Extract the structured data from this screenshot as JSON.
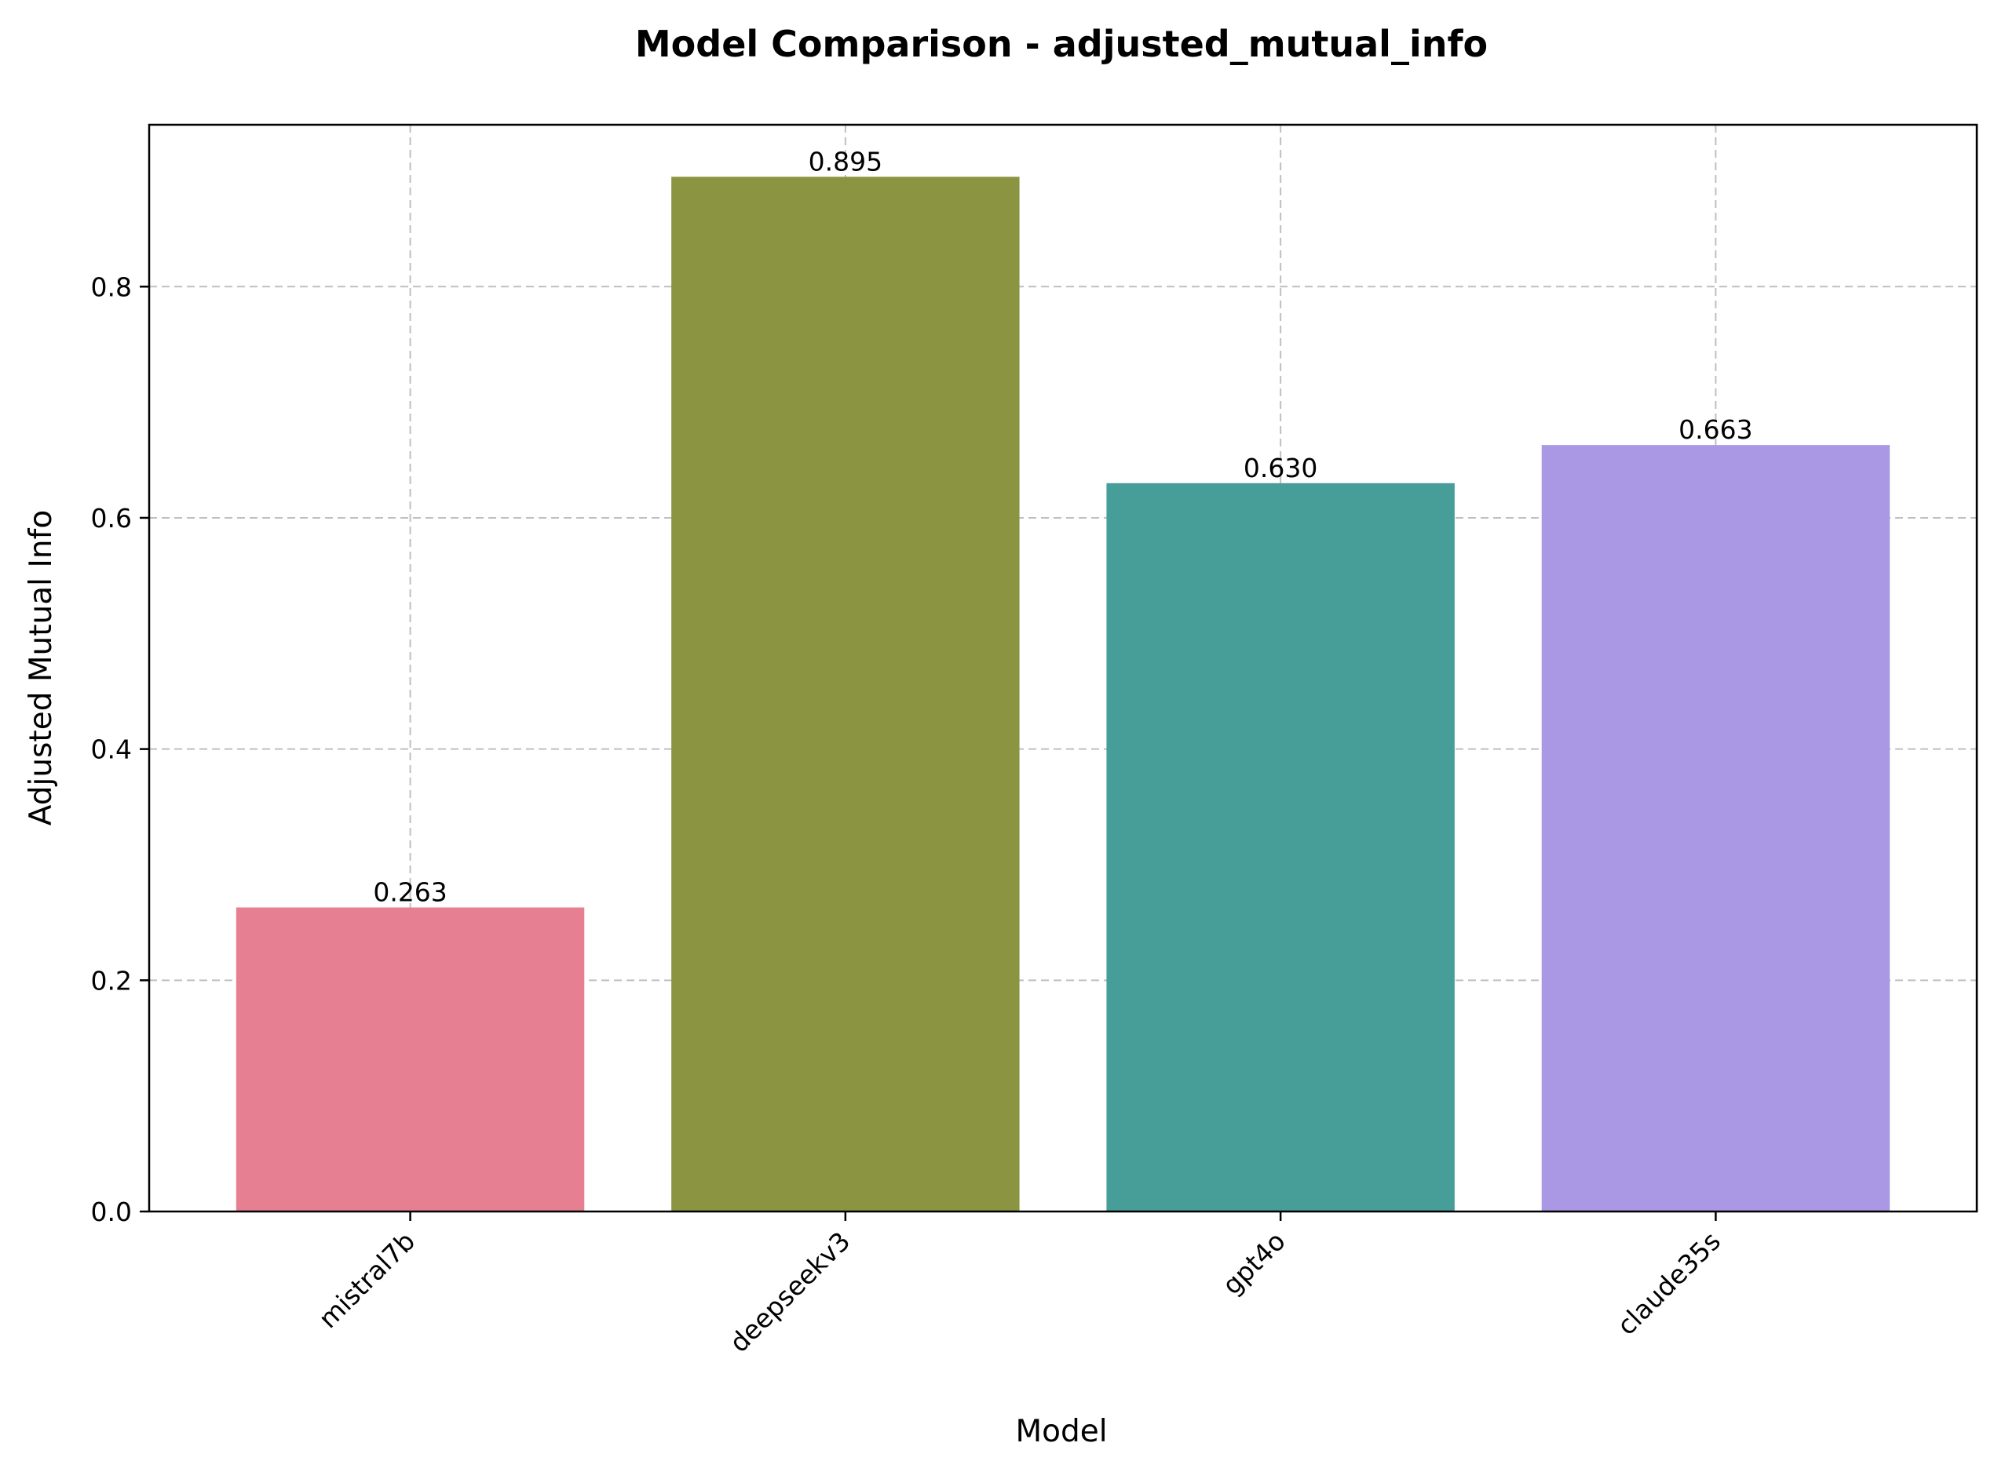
{
  "chart_data": {
    "type": "bar",
    "title": "Model Comparison - adjusted_mutual_info",
    "xlabel": "Model",
    "ylabel": "Adjusted Mutual Info",
    "categories": [
      "mistral7b",
      "deepseekv3",
      "gpt4o",
      "claude35s"
    ],
    "values": [
      0.263,
      0.895,
      0.63,
      0.663
    ],
    "value_labels": [
      "0.263",
      "0.895",
      "0.630",
      "0.663"
    ],
    "colors": [
      "#e67f91",
      "#8a9441",
      "#479e98",
      "#aa98e4"
    ],
    "ylim": [
      0,
      0.94
    ],
    "yticks": [
      0.0,
      0.2,
      0.4,
      0.6,
      0.8
    ],
    "ytick_labels": [
      "0.0",
      "0.2",
      "0.4",
      "0.6",
      "0.8"
    ],
    "grid": true,
    "legend": false
  }
}
